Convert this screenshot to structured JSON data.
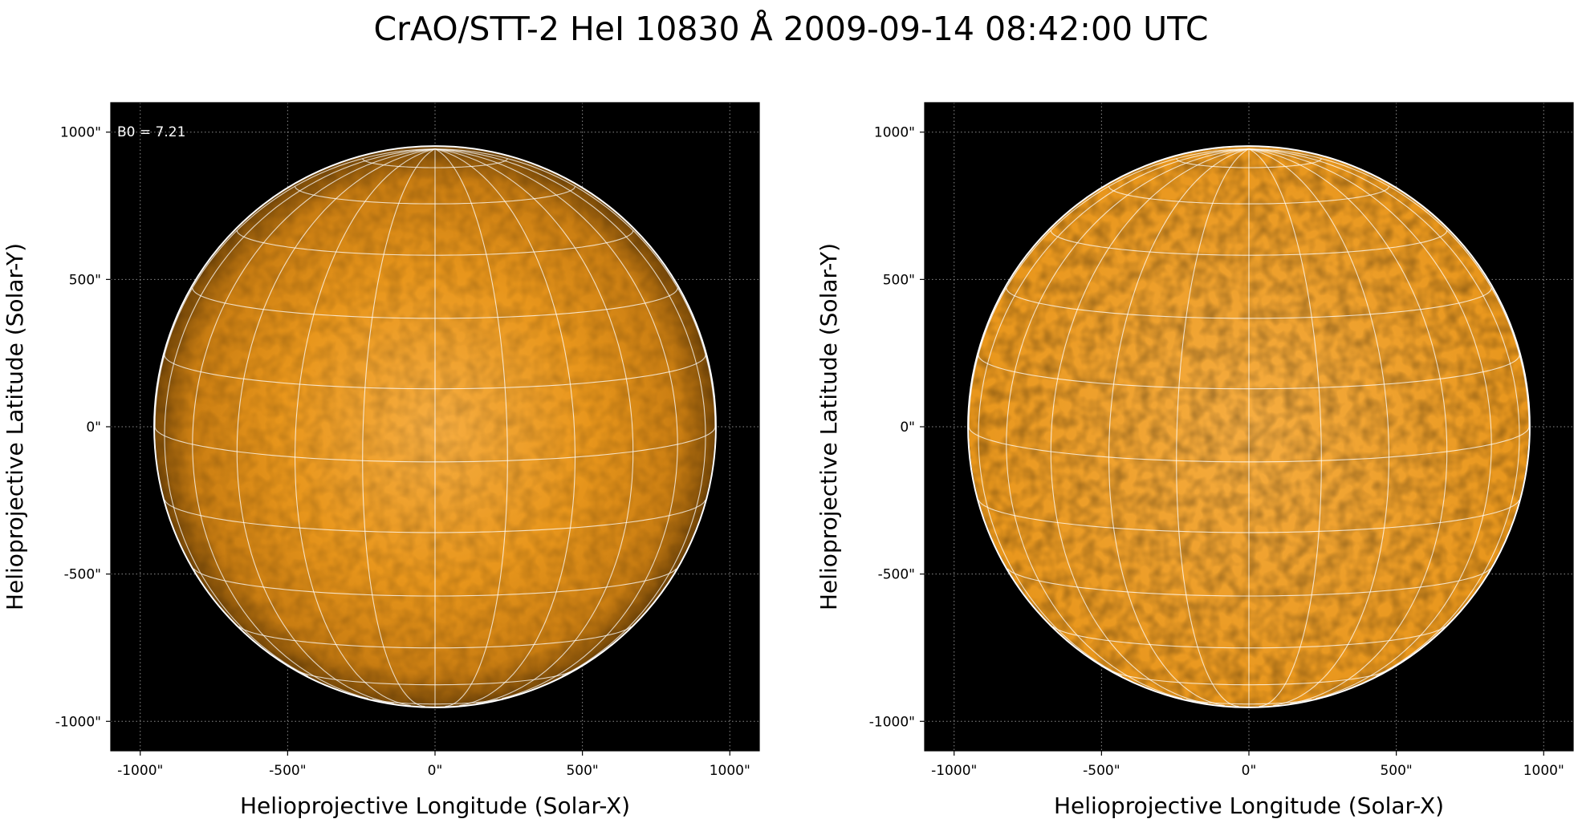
{
  "title": "CrAO/STT-2 HeI 10830 Å 2009-09-14 08:42:00 UTC",
  "colors": {
    "background": "#000000",
    "disk_center": "#f6ad41",
    "disk_mid": "#e8961c",
    "disk_limb": "#7a4a08",
    "grid": "#ffffff",
    "minor_grid": "#8c8c8c"
  },
  "panels": [
    {
      "name": "left",
      "xlabel": "Helioprojective Longitude (Solar-X)",
      "ylabel": "Helioprojective Latitude (Solar-Y)",
      "xticks": [
        "-1000\"",
        "-500\"",
        "0\"",
        "500\"",
        "1000\""
      ],
      "yticks": [
        "1000\"",
        "500\"",
        "0\"",
        "-500\"",
        "-1000\""
      ],
      "annotation": "B0 = 7.21",
      "limb_darkened": true
    },
    {
      "name": "right",
      "xlabel": "Helioprojective Longitude (Solar-X)",
      "ylabel": "Helioprojective Latitude (Solar-Y)",
      "xticks": [
        "-1000\"",
        "-500\"",
        "0\"",
        "500\"",
        "1000\""
      ],
      "yticks": [
        "1000\"",
        "500\"",
        "0\"",
        "-500\"",
        "-1000\""
      ],
      "annotation": "",
      "limb_darkened": false
    }
  ]
}
